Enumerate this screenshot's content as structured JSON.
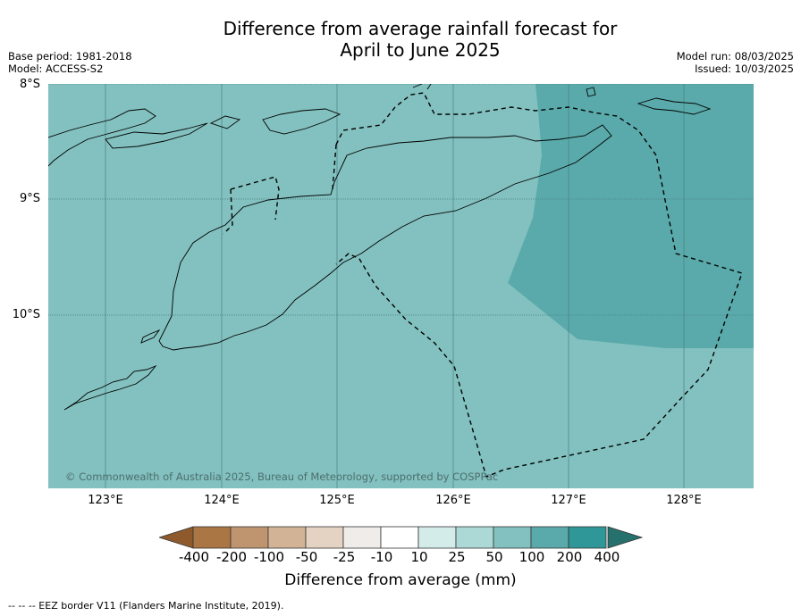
{
  "title_line1": "Difference from average rainfall forecast for",
  "title_line2": "April to June 2025",
  "meta_left": {
    "base_period": "Base period: 1981-2018",
    "model": "Model: ACCESS-S2"
  },
  "meta_right": {
    "model_run": "Model run: 08/03/2025",
    "issued": "Issued: 10/03/2025"
  },
  "lat_labels": [
    "8°S",
    "9°S",
    "10°S"
  ],
  "lon_labels": [
    "123°E",
    "124°E",
    "125°E",
    "126°E",
    "127°E",
    "128°E"
  ],
  "copyright": "© Commonwealth of Australia 2025, Bureau of Meteorology, supported by COSPPac",
  "colorbar": {
    "label": "Difference from average (mm)",
    "ticks": [
      "-400",
      "-200",
      "-100",
      "-50",
      "-25",
      "-10",
      "10",
      "25",
      "50",
      "100",
      "200",
      "400"
    ],
    "colors": [
      "#8e5a2c",
      "#aa7644",
      "#bf9570",
      "#d3b395",
      "#e4d3c3",
      "#f0ece9",
      "#ffffff",
      "#d4ece9",
      "#acd9d5",
      "#82c1bf",
      "#5aaaab",
      "#2f9797",
      "#26706d"
    ]
  },
  "map_colors": {
    "band_50_100": "#82c1bf",
    "band_100_200": "#5aaaab",
    "land_outline": "#000000"
  },
  "footnote": "--  --  -- EEZ border V11 (Flanders Marine Institute, 2019)."
}
